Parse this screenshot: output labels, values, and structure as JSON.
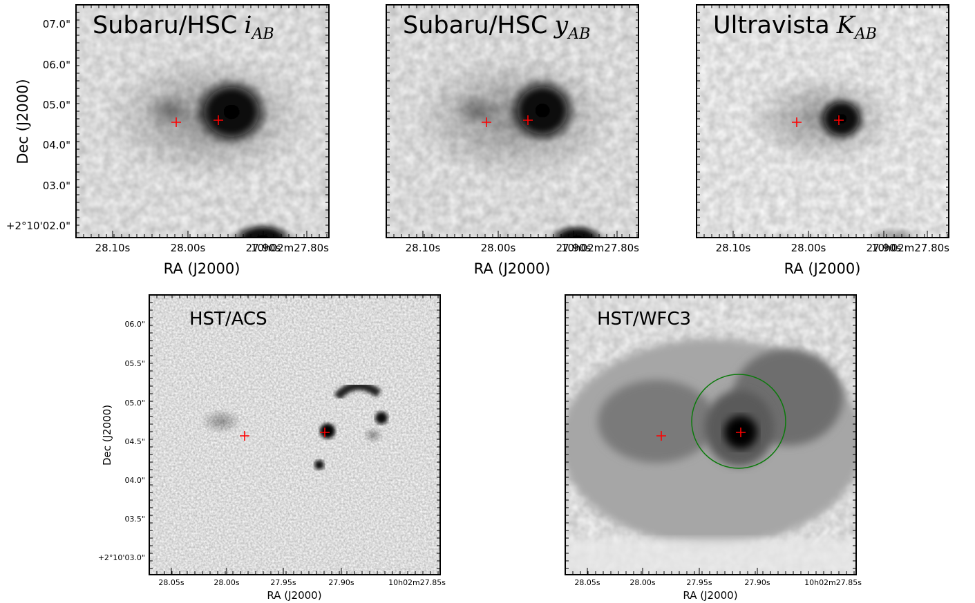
{
  "top_panels": [
    {
      "title": "Subaru/HSC",
      "band": "i",
      "band_sub": "AB"
    },
    {
      "title": "Subaru/HSC",
      "band": "y",
      "band_sub": "AB"
    },
    {
      "title": "Ultravista",
      "band": "K",
      "band_sub": "AB"
    }
  ],
  "top_axes": {
    "x_label": "RA (J2000)",
    "y_label": "Dec (J2000)",
    "x_ticks": [
      "28.10s",
      "28.00s",
      "27.90s",
      "10h02m27.80s"
    ],
    "y_ticks": [
      "07.0\"",
      "06.0\"",
      "05.0\"",
      "04.0\"",
      "03.0\"",
      "+2°10'02.0\""
    ]
  },
  "bottom_panels": [
    {
      "title": "HST/ACS"
    },
    {
      "title": "HST/WFC3"
    }
  ],
  "bottom_axes": {
    "x_label": "RA (J2000)",
    "y_label": "Dec (J2000)",
    "x_ticks": [
      "28.05s",
      "28.00s",
      "27.95s",
      "27.90s",
      "10h02m27.85s"
    ],
    "y_ticks": [
      "06.0\"",
      "05.5\"",
      "05.0\"",
      "04.5\"",
      "04.0\"",
      "03.5\"",
      "+2°10'03.0\""
    ]
  }
}
